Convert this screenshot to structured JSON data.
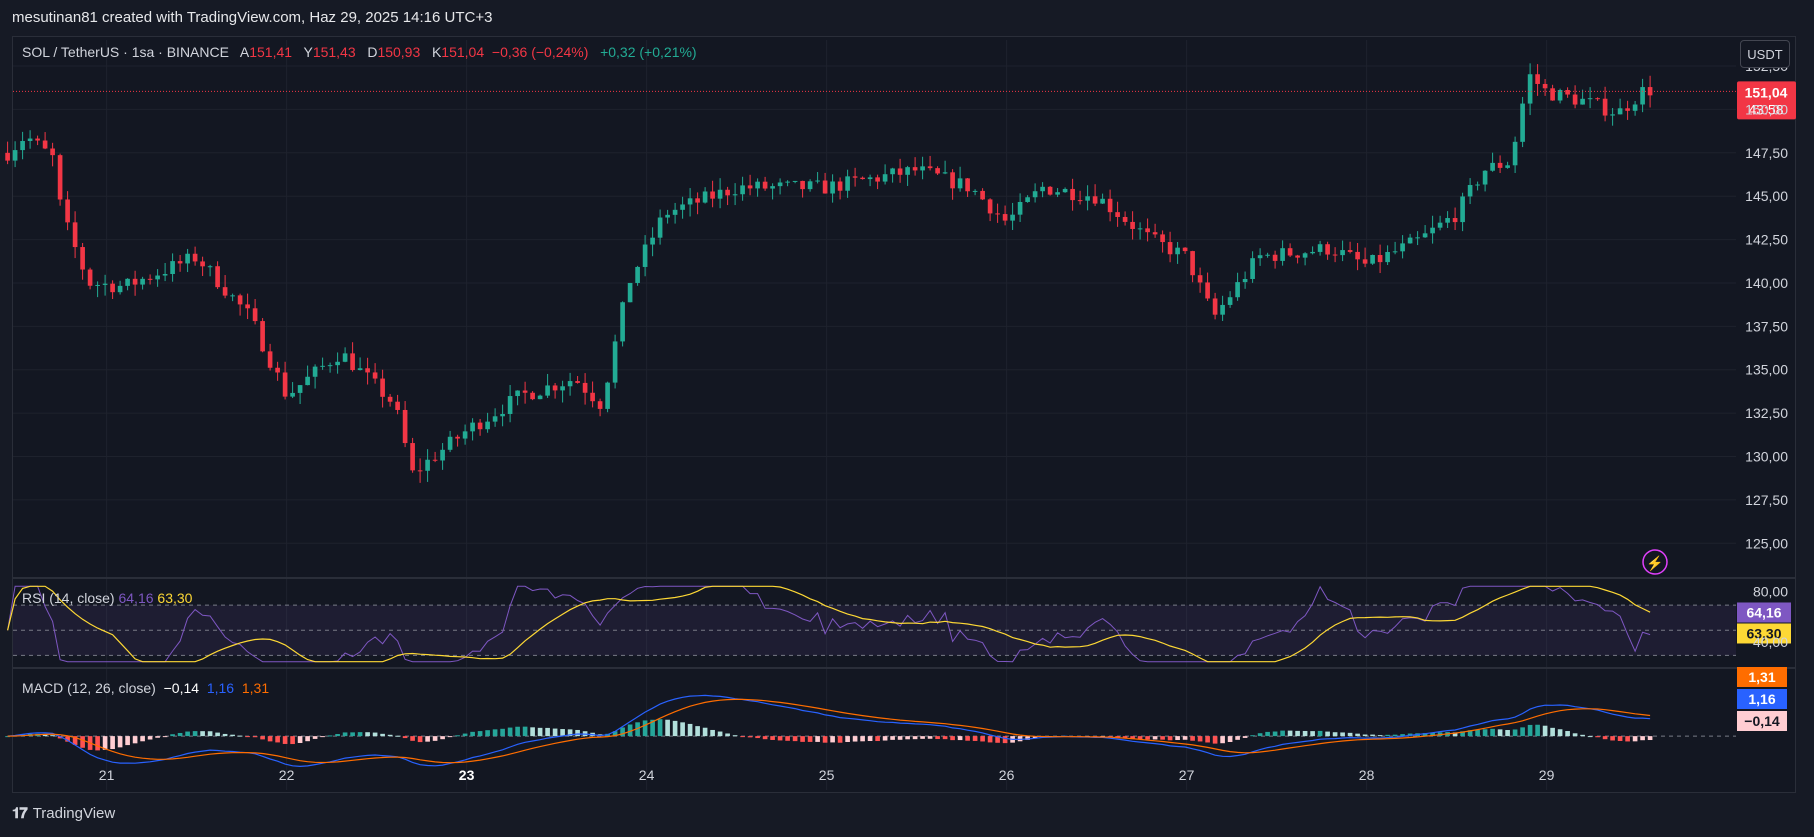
{
  "header": {
    "text": "mesutinan81 created with TradingView.com, Haz 29, 2025 14:16 UTC+3"
  },
  "legend": {
    "symbol": "SOL / TetherUS · 1sa · BINANCE",
    "open_label": "A",
    "open": "151,41",
    "high_label": "Y",
    "high": "151,43",
    "low_label": "D",
    "low": "150,93",
    "close_label": "K",
    "close": "151,04",
    "change": "−0,36 (−0,24%)",
    "extra_change": "+0,32 (+0,21%)"
  },
  "currency_button": {
    "label": "USDT"
  },
  "price_badge": {
    "price": "151,04",
    "countdown": "43:58"
  },
  "rsi": {
    "label": "RSI (14, close)",
    "value": "64,16",
    "ma": "63,30",
    "top_tick": "80,00",
    "partial_tick": "40,00"
  },
  "macd": {
    "label": "MACD (12, 26, close)",
    "hist": "−0,14",
    "macd": "1,16",
    "signal": "1,31"
  },
  "footer": {
    "brand": "TradingView"
  },
  "colors": {
    "up": "#22ab94",
    "down": "#f23645",
    "rsi": "#7e57c2",
    "rsi_ma": "#fdd835",
    "macd": "#2962ff",
    "signal": "#ff6d00"
  },
  "chart_data": {
    "type": "candlestick",
    "title": "SOL / TetherUS · 1sa · BINANCE",
    "price_range": [
      123,
      154
    ],
    "price_ticks": [
      "152,50",
      "150,00",
      "147,50",
      "145,00",
      "142,50",
      "140,00",
      "137,50",
      "135,00",
      "132,50",
      "130,00",
      "127,50",
      "125,00"
    ],
    "x_ticks": [
      "21",
      "22",
      "23",
      "24",
      "25",
      "26",
      "27",
      "28",
      "29"
    ],
    "day_anchor_points": [
      {
        "d": 20.45,
        "p": 147.5
      },
      {
        "d": 20.55,
        "p": 148.5
      },
      {
        "d": 20.7,
        "p": 147.2
      },
      {
        "d": 20.75,
        "p": 144.0
      },
      {
        "d": 20.9,
        "p": 140.0
      },
      {
        "d": 21.1,
        "p": 139.8
      },
      {
        "d": 21.5,
        "p": 141.5
      },
      {
        "d": 21.8,
        "p": 138.0
      },
      {
        "d": 22.0,
        "p": 133.5
      },
      {
        "d": 22.3,
        "p": 136.0
      },
      {
        "d": 22.6,
        "p": 133.0
      },
      {
        "d": 22.7,
        "p": 129.0
      },
      {
        "d": 23.0,
        "p": 131.5
      },
      {
        "d": 23.3,
        "p": 133.5
      },
      {
        "d": 23.6,
        "p": 134.5
      },
      {
        "d": 23.75,
        "p": 133.0
      },
      {
        "d": 23.9,
        "p": 140.0
      },
      {
        "d": 24.1,
        "p": 144.0
      },
      {
        "d": 24.5,
        "p": 145.5
      },
      {
        "d": 25.0,
        "p": 145.5
      },
      {
        "d": 25.5,
        "p": 146.5
      },
      {
        "d": 25.8,
        "p": 145.5
      },
      {
        "d": 26.0,
        "p": 143.5
      },
      {
        "d": 26.2,
        "p": 145.5
      },
      {
        "d": 26.5,
        "p": 145.0
      },
      {
        "d": 26.8,
        "p": 142.5
      },
      {
        "d": 27.0,
        "p": 141.5
      },
      {
        "d": 27.15,
        "p": 138.0
      },
      {
        "d": 27.4,
        "p": 141.5
      },
      {
        "d": 27.8,
        "p": 142.0
      },
      {
        "d": 28.0,
        "p": 141.0
      },
      {
        "d": 28.3,
        "p": 142.5
      },
      {
        "d": 28.5,
        "p": 144.0
      },
      {
        "d": 28.65,
        "p": 146.5
      },
      {
        "d": 28.8,
        "p": 147.0
      },
      {
        "d": 28.9,
        "p": 152.0
      },
      {
        "d": 29.0,
        "p": 151.0
      },
      {
        "d": 29.2,
        "p": 150.5
      },
      {
        "d": 29.4,
        "p": 149.8
      },
      {
        "d": 29.55,
        "p": 151.2
      },
      {
        "d": 29.6,
        "p": 151.04
      }
    ],
    "rsi_range": [
      20,
      90
    ],
    "macd_range": [
      -2.2,
      2.7
    ]
  }
}
